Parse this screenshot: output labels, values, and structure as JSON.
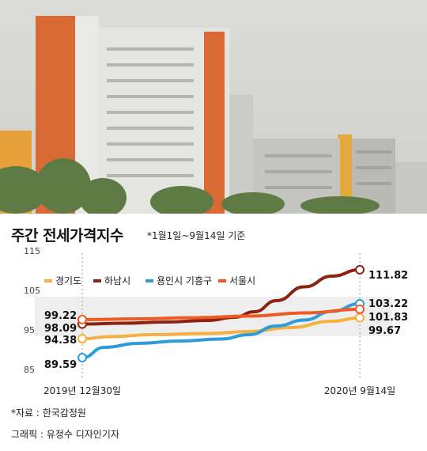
{
  "header": {
    "title": "주간 전세가격지수",
    "subtitle": "*1월1일~9월14일 기준"
  },
  "footer": {
    "source": "*자료 : 한국감정원",
    "credit": "그래픽 : 유정수 디자인기자"
  },
  "photo": {
    "icon": "apartment-buildings-photo"
  },
  "chart_data": {
    "type": "line",
    "title": "주간 전세가격지수",
    "subtitle": "*1월1일~9월14일 기준",
    "x": [
      "2019년 12월30일",
      "2020년 9월14일"
    ],
    "ylim": [
      85,
      115
    ],
    "yticks": [
      85,
      95,
      105,
      115
    ],
    "legend_position": "top-left",
    "series": [
      {
        "name": "경기도",
        "color": "#f5b041",
        "start": 94.38,
        "end": 99.67,
        "start_label": "94.38",
        "end_label": "99.67",
        "path": [
          [
            0,
            94.38
          ],
          [
            0.1,
            94.9
          ],
          [
            0.25,
            95.4
          ],
          [
            0.45,
            95.7
          ],
          [
            0.6,
            96.2
          ],
          [
            0.75,
            97.2
          ],
          [
            0.9,
            98.8
          ],
          [
            1,
            99.67
          ]
        ]
      },
      {
        "name": "하남시",
        "color": "#8b2212",
        "start": 98.09,
        "end": 111.82,
        "start_label": "98.09",
        "end_label": "111.82",
        "path": [
          [
            0,
            98.09
          ],
          [
            0.15,
            98.3
          ],
          [
            0.3,
            98.6
          ],
          [
            0.45,
            99.0
          ],
          [
            0.55,
            99.8
          ],
          [
            0.62,
            101.2
          ],
          [
            0.7,
            104.0
          ],
          [
            0.8,
            107.5
          ],
          [
            0.9,
            110.2
          ],
          [
            1,
            111.82
          ]
        ]
      },
      {
        "name": "용인시 기흥구",
        "color": "#2e9bdb",
        "start": 89.59,
        "end": 103.22,
        "start_label": "89.59",
        "end_label": "103.22",
        "path": [
          [
            0,
            89.59
          ],
          [
            0.08,
            92.2
          ],
          [
            0.2,
            93.2
          ],
          [
            0.35,
            93.8
          ],
          [
            0.5,
            94.3
          ],
          [
            0.6,
            95.4
          ],
          [
            0.7,
            97.6
          ],
          [
            0.8,
            99.1
          ],
          [
            0.9,
            101.3
          ],
          [
            1,
            103.22
          ]
        ]
      },
      {
        "name": "서울시",
        "color": "#ef5a24",
        "start": 99.22,
        "end": 101.83,
        "start_label": "99.22",
        "end_label": "101.83",
        "path": [
          [
            0,
            99.22
          ],
          [
            0.2,
            99.4
          ],
          [
            0.4,
            99.7
          ],
          [
            0.6,
            100.1
          ],
          [
            0.8,
            100.9
          ],
          [
            1,
            101.83
          ]
        ]
      }
    ]
  }
}
